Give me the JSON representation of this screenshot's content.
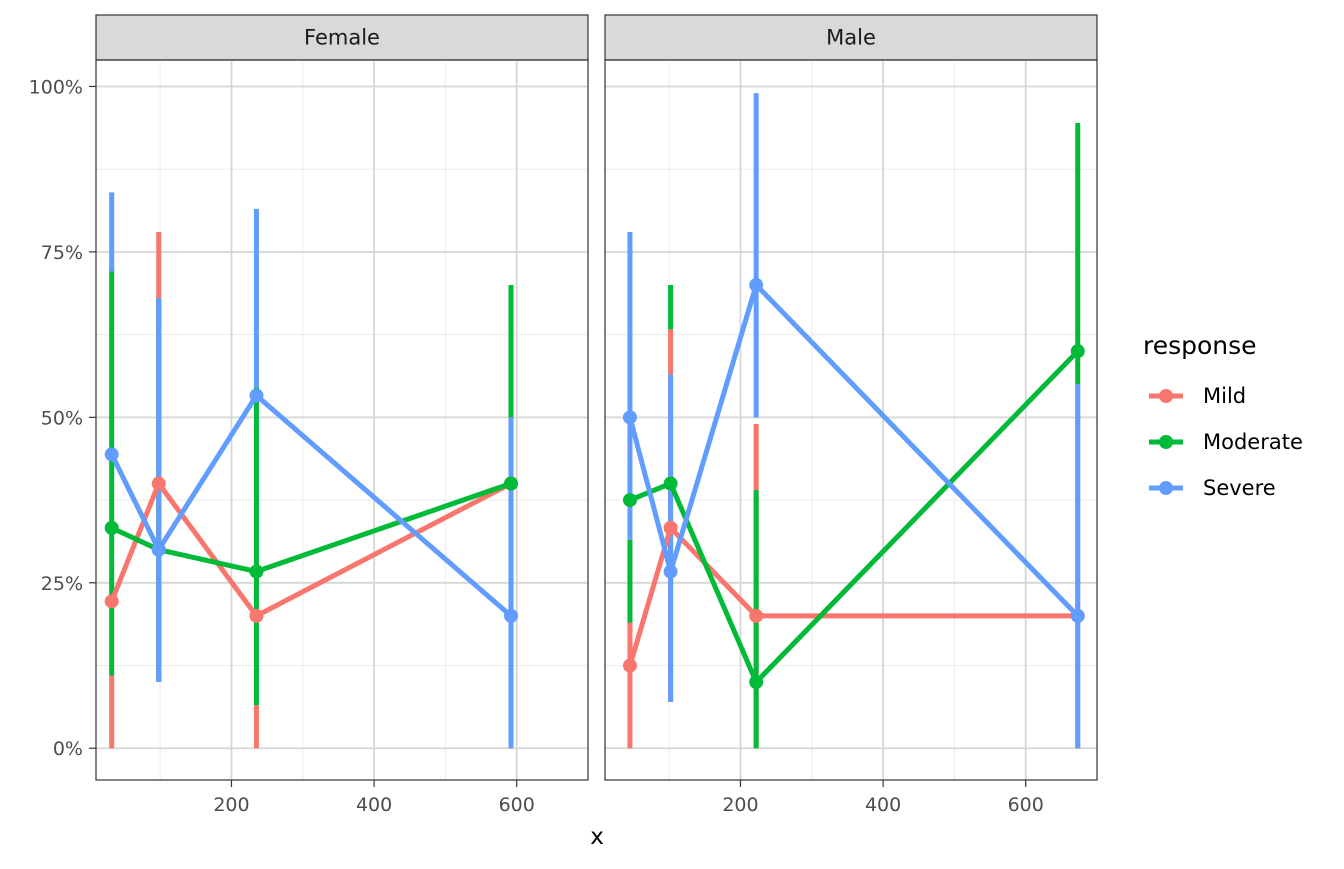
{
  "chart_data": {
    "type": "line",
    "xlabel": "x",
    "ylabel": "",
    "xlim": [
      10,
      700
    ],
    "ylim": [
      -0.048,
      1.04
    ],
    "x_ticks": [
      200,
      400,
      600
    ],
    "x_tick_labels": [
      "200",
      "400",
      "600"
    ],
    "y_ticks": [
      0,
      0.25,
      0.5,
      0.75,
      1.0
    ],
    "y_tick_labels": [
      "0%",
      "25%",
      "50%",
      "75%",
      "100%"
    ],
    "grid": true,
    "legend": {
      "title": "response",
      "position": "right",
      "entries": [
        "Mild",
        "Moderate",
        "Severe"
      ]
    },
    "colors": {
      "Mild": "#F8766D",
      "Moderate": "#00BA38",
      "Severe": "#619CFF"
    },
    "panels": [
      {
        "label": "Female",
        "series": [
          {
            "name": "Mild",
            "points": [
              {
                "x": 32,
                "y": 0.222,
                "lo": 0.0,
                "hi": 0.11
              },
              {
                "x": 98,
                "y": 0.4,
                "lo": 0.1,
                "hi": 0.78
              },
              {
                "x": 235,
                "y": 0.2,
                "lo": 0.0,
                "hi": 0.065
              },
              {
                "x": 592,
                "y": 0.4,
                "lo": 0.0,
                "hi": 0.7
              }
            ]
          },
          {
            "name": "Moderate",
            "points": [
              {
                "x": 32,
                "y": 0.333,
                "lo": 0.11,
                "hi": 0.725
              },
              {
                "x": 98,
                "y": 0.3,
                "lo": 0.1,
                "hi": 0.68
              },
              {
                "x": 235,
                "y": 0.267,
                "lo": 0.065,
                "hi": 0.545
              },
              {
                "x": 592,
                "y": 0.4,
                "lo": 0.5,
                "hi": 0.7
              }
            ]
          },
          {
            "name": "Severe",
            "points": [
              {
                "x": 32,
                "y": 0.444,
                "lo": 0.72,
                "hi": 0.84
              },
              {
                "x": 98,
                "y": 0.3,
                "lo": 0.1,
                "hi": 0.68
              },
              {
                "x": 235,
                "y": 0.533,
                "lo": 0.545,
                "hi": 0.815
              },
              {
                "x": 592,
                "y": 0.2,
                "lo": 0.0,
                "hi": 0.5
              }
            ]
          }
        ]
      },
      {
        "label": "Male",
        "series": [
          {
            "name": "Mild",
            "points": [
              {
                "x": 45,
                "y": 0.125,
                "lo": 0.0,
                "hi": 0.19
              },
              {
                "x": 102,
                "y": 0.333,
                "lo": 0.07,
                "hi": 0.633
              },
              {
                "x": 222,
                "y": 0.2,
                "lo": 0.0,
                "hi": 0.49
              },
              {
                "x": 673,
                "y": 0.2,
                "lo": 0.0,
                "hi": 0.55
              }
            ]
          },
          {
            "name": "Moderate",
            "points": [
              {
                "x": 45,
                "y": 0.375,
                "lo": 0.19,
                "hi": 0.315
              },
              {
                "x": 102,
                "y": 0.4,
                "lo": 0.633,
                "hi": 0.7
              },
              {
                "x": 222,
                "y": 0.1,
                "lo": 0.0,
                "hi": 0.39
              },
              {
                "x": 673,
                "y": 0.6,
                "lo": 0.55,
                "hi": 0.945
              }
            ]
          },
          {
            "name": "Severe",
            "points": [
              {
                "x": 45,
                "y": 0.5,
                "lo": 0.315,
                "hi": 0.78
              },
              {
                "x": 102,
                "y": 0.267,
                "lo": 0.07,
                "hi": 0.565
              },
              {
                "x": 222,
                "y": 0.7,
                "lo": 0.5,
                "hi": 0.99
              },
              {
                "x": 673,
                "y": 0.2,
                "lo": 0.0,
                "hi": 0.55
              }
            ]
          }
        ]
      }
    ]
  }
}
